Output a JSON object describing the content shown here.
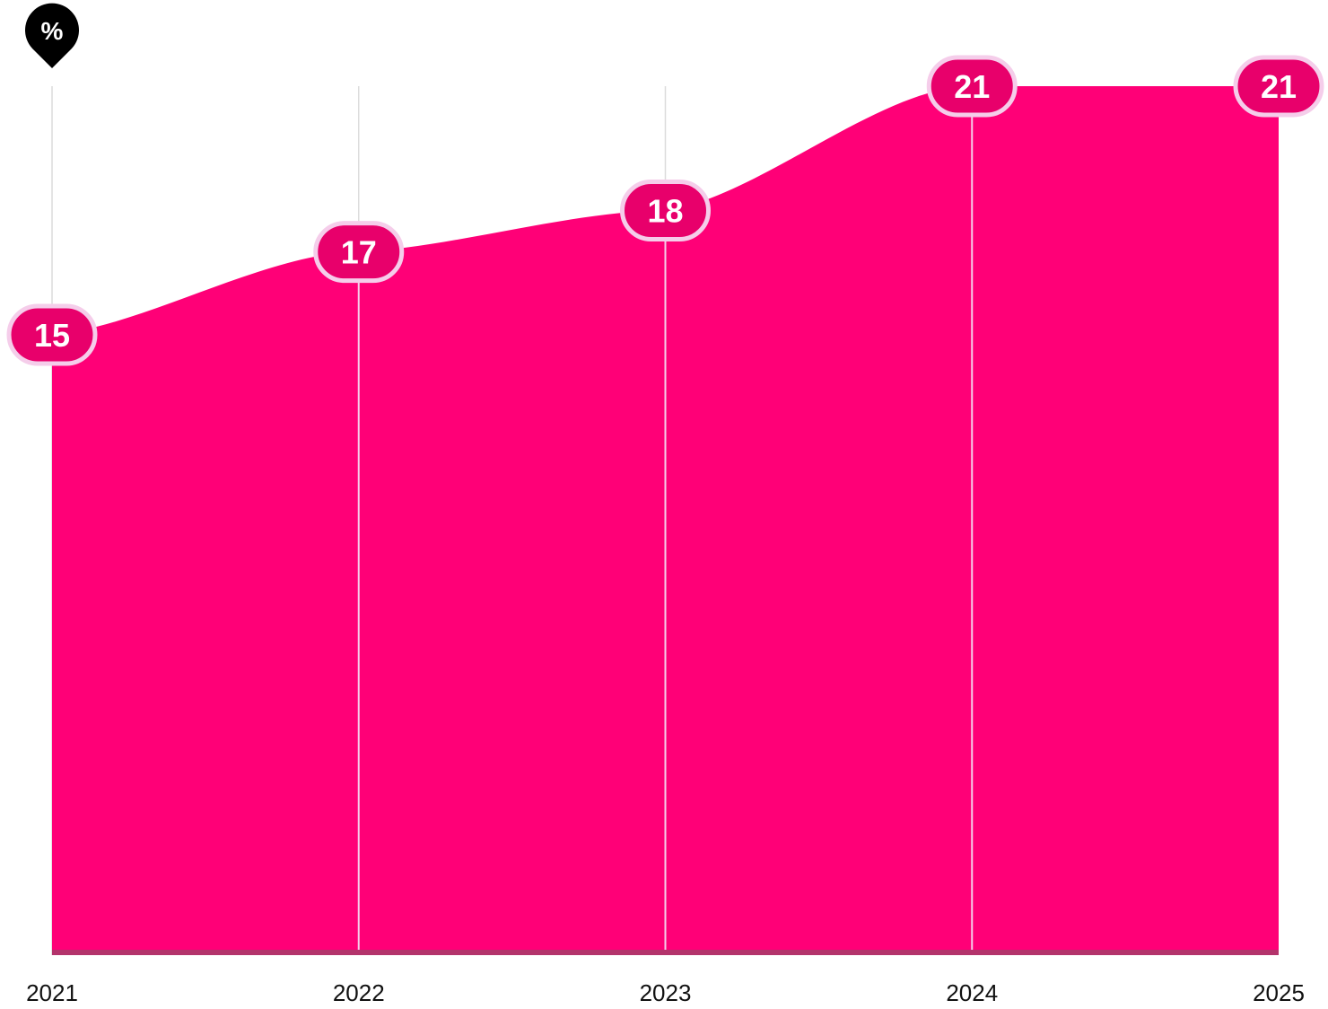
{
  "chart_data": {
    "type": "area",
    "x": [
      "2021",
      "2022",
      "2023",
      "2024",
      "2025"
    ],
    "series": [
      {
        "values": [
          15,
          17,
          18,
          21,
          21
        ]
      }
    ],
    "unit_label": "%",
    "ylim": [
      0,
      21
    ],
    "grid": "vertical",
    "colors": {
      "area": "#ff0077",
      "badge_fill": "#e8006b",
      "badge_stroke": "#f5cdea",
      "gridline": "#dcdcdc",
      "unit_marker": "#000000"
    }
  }
}
